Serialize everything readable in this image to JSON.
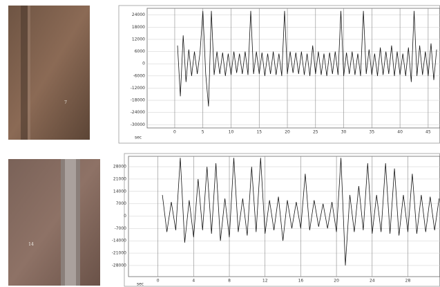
{
  "specimens": [
    {
      "label": "7"
    },
    {
      "label": "14"
    }
  ],
  "chart_data": [
    {
      "type": "line",
      "x_label": "sec",
      "color": "#111111",
      "grid": true,
      "x": [
        0.5,
        1,
        1.5,
        2,
        2.5,
        3,
        3.5,
        4,
        4.5,
        5,
        5.5,
        6,
        6.5,
        7,
        7.5,
        8,
        8.5,
        9,
        9.5,
        10,
        10.5,
        11,
        11.5,
        12,
        12.5,
        13,
        13.5,
        14,
        14.5,
        15,
        15.5,
        16,
        16.5,
        17,
        17.5,
        18,
        18.5,
        19,
        19.5,
        20,
        20.5,
        21,
        21.5,
        22,
        22.5,
        23,
        23.5,
        24,
        24.5,
        25,
        25.5,
        26,
        26.5,
        27,
        27.5,
        28,
        28.5,
        29,
        29.5,
        30,
        30.5,
        31,
        31.5,
        32,
        32.5,
        33,
        33.5,
        34,
        34.5,
        35,
        35.5,
        36,
        36.5,
        37,
        37.5,
        38,
        38.5,
        39,
        39.5,
        40,
        40.5,
        41,
        41.5,
        42,
        42.5,
        43,
        43.5,
        44,
        44.5,
        45,
        45.5,
        46,
        46.5
      ],
      "values": [
        9000,
        -16000,
        14000,
        -9000,
        7000,
        -6000,
        6000,
        -5000,
        5500,
        26000,
        -5000,
        -21000,
        26000,
        -5500,
        6000,
        -5000,
        5500,
        -6000,
        5000,
        -5500,
        6000,
        -4500,
        5000,
        -5000,
        6000,
        -5500,
        26000,
        -5000,
        6000,
        -5000,
        5500,
        -6000,
        5000,
        -5000,
        6000,
        -5500,
        5000,
        -6000,
        26000,
        -5000,
        6000,
        -4500,
        5500,
        -5000,
        6000,
        -5500,
        5000,
        -6000,
        9000,
        -5000,
        6000,
        -5500,
        5000,
        -6000,
        5500,
        -5000,
        6000,
        -5500,
        26000,
        -6000,
        5500,
        -5000,
        6000,
        -5500,
        5000,
        -6000,
        26000,
        -5000,
        7000,
        -5500,
        5000,
        -6000,
        8000,
        -5500,
        6000,
        -5000,
        9000,
        -6000,
        6000,
        -5500,
        5000,
        -6000,
        8000,
        -9000,
        26000,
        -6000,
        9000,
        -5500,
        6000,
        -6000,
        10000,
        -8000,
        7000
      ],
      "xlim": [
        -4.9,
        47.1
      ],
      "xticks": [
        0,
        5,
        10,
        15,
        20,
        25,
        30,
        35,
        40,
        45
      ],
      "ylim": [
        -31600,
        27300
      ],
      "yticks": [
        24000,
        18000,
        12000,
        6000,
        0,
        -6000,
        -12000,
        -18000,
        -24000,
        -30000
      ]
    },
    {
      "type": "line",
      "x_label": "sec",
      "color": "#111111",
      "grid": true,
      "x": [
        0.5,
        1,
        1.5,
        2,
        2.5,
        3,
        3.5,
        4,
        4.5,
        5,
        5.5,
        6,
        6.5,
        7,
        7.5,
        8,
        8.5,
        9,
        9.5,
        10,
        10.5,
        11,
        11.5,
        12,
        12.5,
        13,
        13.5,
        14,
        14.5,
        15,
        15.5,
        16,
        16.5,
        17,
        17.5,
        18,
        18.5,
        19,
        19.5,
        20,
        20.5,
        21,
        21.5,
        22,
        22.5,
        23,
        23.5,
        24,
        24.5,
        25,
        25.5,
        26,
        26.5,
        27,
        27.5,
        28,
        28.5,
        29,
        29.5,
        30,
        30.5,
        31,
        31.5
      ],
      "values": [
        12000,
        -9000,
        8000,
        -8000,
        33000,
        -15000,
        9000,
        -12000,
        21000,
        -8000,
        28000,
        -10000,
        30000,
        -14000,
        10000,
        -12000,
        33000,
        -9000,
        10000,
        -11000,
        28000,
        -9000,
        33000,
        -10000,
        9000,
        -8000,
        11000,
        -14000,
        9000,
        -7000,
        8000,
        -7000,
        24000,
        -8000,
        9000,
        -6000,
        7000,
        -7000,
        8000,
        -9000,
        33000,
        -28000,
        12000,
        -9000,
        17000,
        -8000,
        30000,
        -10000,
        12000,
        -9000,
        30000,
        -10000,
        27000,
        -11000,
        12000,
        -9000,
        24000,
        -10000,
        12000,
        -9000,
        11000,
        -8000,
        10000
      ],
      "xlim": [
        -3.3,
        31.6
      ],
      "xticks": [
        0,
        4,
        8,
        12,
        16,
        20,
        24,
        28
      ],
      "ylim": [
        -34300,
        33900
      ],
      "yticks": [
        28000,
        21000,
        14000,
        7000,
        0,
        -7000,
        -14000,
        -21000,
        -28000
      ]
    }
  ]
}
